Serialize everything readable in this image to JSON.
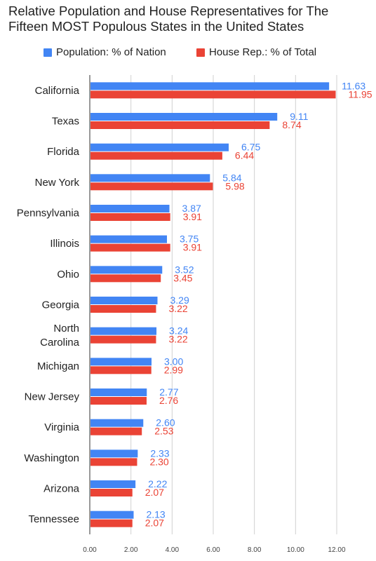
{
  "chart_data": {
    "type": "bar",
    "orientation": "horizontal",
    "title": "Relative Population and House Representatives for The Fifteen MOST Populous States in the United States",
    "categories": [
      "California",
      "Texas",
      "Florida",
      "New York",
      "Pennsylvania",
      "Illinois",
      "Ohio",
      "Georgia",
      "North Carolina",
      "Michigan",
      "New Jersey",
      "Virginia",
      "Washington",
      "Arizona",
      "Tennessee"
    ],
    "series": [
      {
        "name": "Population: % of Nation",
        "color": "#4285f4",
        "values": [
          11.63,
          9.11,
          6.75,
          5.84,
          3.87,
          3.75,
          3.52,
          3.29,
          3.24,
          3.0,
          2.77,
          2.6,
          2.33,
          2.22,
          2.13
        ],
        "labels": [
          "11.63",
          "9.11",
          "6.75",
          "5.84",
          "3.87",
          "3.75",
          "3.52",
          "3.29",
          "3.24",
          "3.00",
          "2.77",
          "2.60",
          "2.33",
          "2.22",
          "2.13"
        ]
      },
      {
        "name": "House Rep.: % of Total",
        "color": "#ea4335",
        "values": [
          11.95,
          8.74,
          6.44,
          5.98,
          3.91,
          3.91,
          3.45,
          3.22,
          3.22,
          2.99,
          2.76,
          2.53,
          2.3,
          2.07,
          2.07
        ],
        "labels": [
          "11.95",
          "8.74",
          "6.44",
          "5.98",
          "3.91",
          "3.91",
          "3.45",
          "3.22",
          "3.22",
          "2.99",
          "2.76",
          "2.53",
          "2.30",
          "2.07",
          "2.07"
        ]
      }
    ],
    "xlim": [
      0,
      12
    ],
    "xticks": [
      "0.00",
      "2.00",
      "4.00",
      "6.00",
      "8.00",
      "10.00",
      "12.00"
    ],
    "grid": true,
    "legend_position": "top"
  }
}
